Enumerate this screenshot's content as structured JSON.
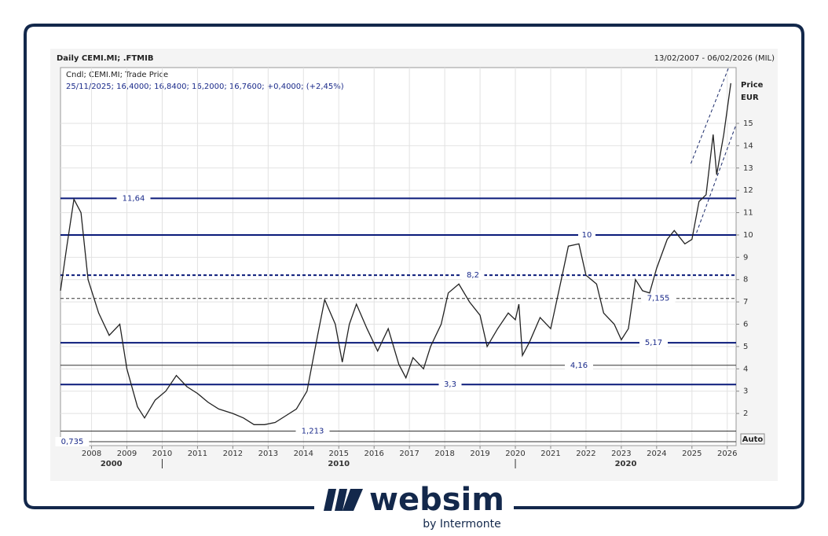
{
  "chart_data": {
    "type": "line",
    "title": "Daily CEMI.MI; .FTMIB",
    "date_range": "13/02/2007 - 06/02/2026 (MIL)",
    "legend_header": "Cndl; CEMI.MI; Trade Price",
    "legend_detail": "25/11/2025; 16,4000; 16,8400; 16,2000; 16,7600; +0,4000; (+2,45%)",
    "y_label": [
      "Price",
      "EUR"
    ],
    "auto_button": "Auto",
    "xlim": [
      2007.12,
      2026.25
    ],
    "ylim": [
      0.56,
      17.5
    ],
    "xticks": [
      2008,
      2009,
      2010,
      2011,
      2012,
      2013,
      2014,
      2015,
      2016,
      2017,
      2018,
      2019,
      2020,
      2021,
      2022,
      2023,
      2024,
      2025,
      2026
    ],
    "yticks": [
      2,
      3,
      4,
      5,
      6,
      7,
      8,
      9,
      10,
      11,
      12,
      13,
      14,
      15
    ],
    "decades": [
      2000,
      2010,
      2020
    ],
    "grid": true,
    "series": [
      {
        "name": "CEMI.MI",
        "color": "#222222",
        "x": [
          2007.12,
          2007.3,
          2007.5,
          2007.7,
          2007.9,
          2008.2,
          2008.5,
          2008.8,
          2009.0,
          2009.3,
          2009.5,
          2009.8,
          2010.1,
          2010.4,
          2010.7,
          2011.0,
          2011.3,
          2011.6,
          2012.0,
          2012.3,
          2012.6,
          2012.9,
          2013.2,
          2013.5,
          2013.8,
          2014.1,
          2014.4,
          2014.6,
          2014.9,
          2015.1,
          2015.3,
          2015.5,
          2015.8,
          2016.1,
          2016.4,
          2016.7,
          2016.9,
          2017.1,
          2017.4,
          2017.6,
          2017.9,
          2018.1,
          2018.4,
          2018.7,
          2019.0,
          2019.2,
          2019.5,
          2019.8,
          2020.0,
          2020.1,
          2020.2,
          2020.4,
          2020.7,
          2021.0,
          2021.3,
          2021.5,
          2021.8,
          2022.0,
          2022.3,
          2022.5,
          2022.8,
          2023.0,
          2023.2,
          2023.4,
          2023.6,
          2023.8,
          2024.0,
          2024.3,
          2024.5,
          2024.8,
          2025.0,
          2025.2,
          2025.4,
          2025.6,
          2025.7,
          2025.9,
          2026.1
        ],
        "values": [
          7.5,
          9.5,
          11.6,
          11.0,
          8.0,
          6.5,
          5.5,
          6.0,
          4.0,
          2.3,
          1.8,
          2.6,
          3.0,
          3.7,
          3.2,
          2.9,
          2.5,
          2.2,
          2.0,
          1.8,
          1.5,
          1.5,
          1.6,
          1.9,
          2.2,
          3.0,
          5.5,
          7.1,
          6.0,
          4.3,
          6.0,
          6.9,
          5.8,
          4.8,
          5.8,
          4.2,
          3.6,
          4.5,
          4.0,
          5.0,
          6.0,
          7.4,
          7.8,
          7.0,
          6.4,
          5.0,
          5.8,
          6.5,
          6.2,
          6.9,
          4.6,
          5.2,
          6.3,
          5.8,
          8.0,
          9.5,
          9.6,
          8.2,
          7.8,
          6.5,
          6.0,
          5.3,
          5.8,
          8.0,
          7.5,
          7.4,
          8.5,
          9.8,
          10.2,
          9.6,
          9.8,
          11.5,
          11.8,
          14.5,
          12.7,
          14.5,
          16.8
        ]
      }
    ],
    "levels": [
      {
        "value": 11.64,
        "label": "11,64",
        "style": "solid",
        "weight": "thick"
      },
      {
        "value": 10,
        "label": "10",
        "style": "solid",
        "weight": "thick"
      },
      {
        "value": 8.2,
        "label": "8,2",
        "style": "dashed",
        "weight": "thick"
      },
      {
        "value": 7.155,
        "label": "7,155",
        "style": "dashed",
        "weight": "thin"
      },
      {
        "value": 5.17,
        "label": "5,17",
        "style": "solid",
        "weight": "thick"
      },
      {
        "value": 4.16,
        "label": "4,16",
        "style": "solid",
        "weight": "thin"
      },
      {
        "value": 3.3,
        "label": "3,3",
        "style": "solid",
        "weight": "thick"
      },
      {
        "value": 1.213,
        "label": "1,213",
        "style": "solid",
        "weight": "thin"
      },
      {
        "value": 0.735,
        "label": "0,735",
        "style": "solid",
        "weight": "thin"
      }
    ],
    "trend_lines": [
      {
        "x": [
          2024.97,
          2026.04
        ],
        "y": [
          13.2,
          17.5
        ]
      },
      {
        "x": [
          2025.13,
          2026.24
        ],
        "y": [
          10.1,
          14.9
        ]
      }
    ]
  },
  "logo": {
    "name": "websim",
    "tagline": "by Intermonte"
  }
}
